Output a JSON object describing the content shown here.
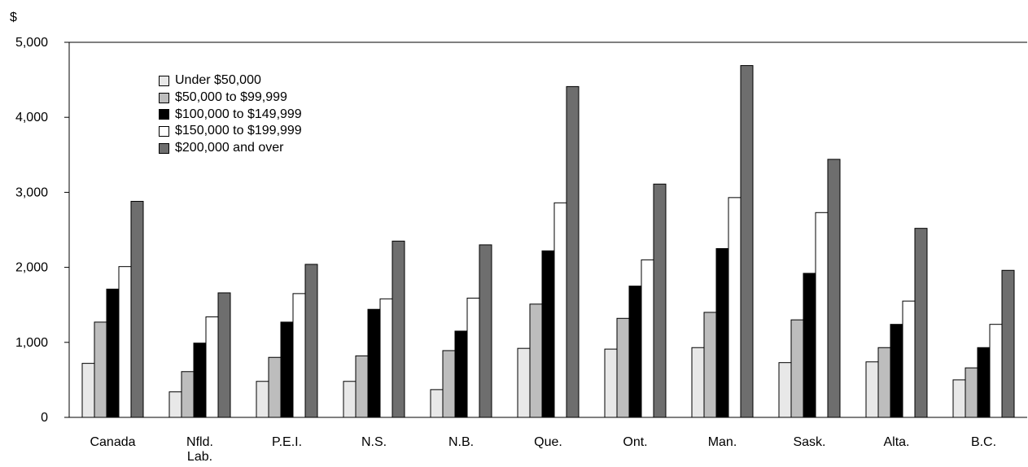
{
  "chart_data": {
    "type": "bar",
    "ylabel": "$",
    "ylim": [
      0,
      5000
    ],
    "yticks": [
      0,
      1000,
      2000,
      3000,
      4000,
      5000
    ],
    "ytick_labels": [
      "0",
      "1,000",
      "2,000",
      "3,000",
      "4,000",
      "5,000"
    ],
    "grid": false,
    "legend_position": "top-left",
    "categories": [
      [
        "Canada"
      ],
      [
        "Nfld.",
        "Lab."
      ],
      [
        "P.E.I."
      ],
      [
        "N.S."
      ],
      [
        "N.B."
      ],
      [
        "Que."
      ],
      [
        "Ont."
      ],
      [
        "Man."
      ],
      [
        "Sask."
      ],
      [
        "Alta."
      ],
      [
        "B.C."
      ]
    ],
    "series": [
      {
        "name": "Under $50,000",
        "color": "#e8e8e8",
        "values": [
          720,
          340,
          480,
          480,
          370,
          920,
          910,
          930,
          730,
          740,
          500
        ]
      },
      {
        "name": "$50,000 to $99,999",
        "color": "#bdbdbd",
        "values": [
          1270,
          610,
          800,
          820,
          890,
          1510,
          1320,
          1400,
          1300,
          930,
          660
        ]
      },
      {
        "name": "$100,000 to $149,999",
        "color": "#000000",
        "values": [
          1710,
          990,
          1270,
          1440,
          1150,
          2220,
          1750,
          2250,
          1920,
          1240,
          930
        ]
      },
      {
        "name": "$150,000 to $199,999",
        "color": "#ffffff",
        "values": [
          2010,
          1340,
          1650,
          1580,
          1590,
          2860,
          2100,
          2930,
          2730,
          1550,
          1240
        ]
      },
      {
        "name": "$200,000 and over",
        "color": "#6e6e6e",
        "values": [
          2880,
          1660,
          2040,
          2350,
          2300,
          4410,
          3110,
          4690,
          3440,
          2520,
          1960
        ]
      }
    ]
  }
}
